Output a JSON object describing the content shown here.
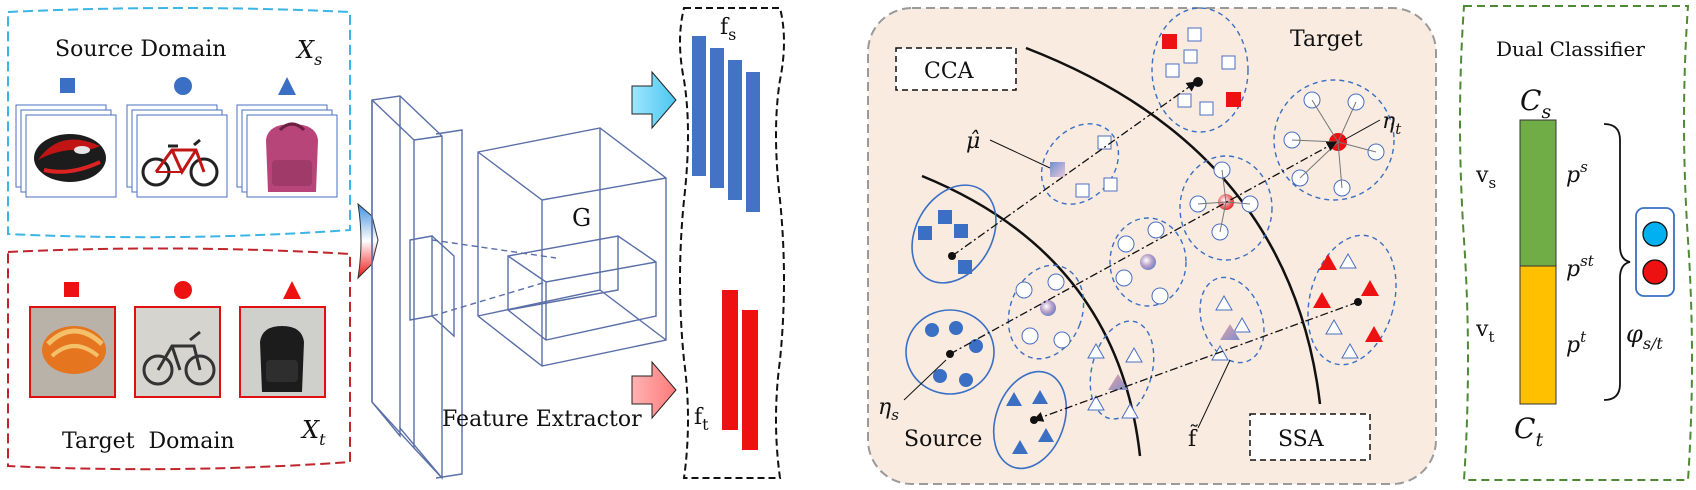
{
  "source_panel": {
    "title": "Source Domain",
    "symbol_base": "X",
    "symbol_sub": "s",
    "class_markers": [
      "square-icon",
      "circle-icon",
      "triangle-icon"
    ],
    "images": [
      "helmet-image",
      "bicycle-image",
      "backpack-image"
    ],
    "color": "#3a6fc4",
    "border_color": "#3bb4e6"
  },
  "target_panel": {
    "title": "Target  Domain",
    "symbol_base": "X",
    "symbol_sub": "t",
    "class_markers": [
      "square-icon",
      "circle-icon",
      "triangle-icon"
    ],
    "images": [
      "helmet-photo",
      "bicycle-photo",
      "backpack-photo"
    ],
    "color": "#ee1111",
    "border_color": "#c0242c"
  },
  "extractor": {
    "label": "Feature Extractor",
    "G": "G"
  },
  "features": {
    "fs_base": "f",
    "fs_sub": "s",
    "ft_base": "f",
    "ft_sub": "t",
    "fs_color": "#4472c4",
    "ft_color": "#ee1111"
  },
  "space_panel": {
    "cca": "CCA",
    "ssa": "SSA",
    "target": "Target",
    "source": "Source",
    "mu_hat": "μ̂",
    "f_tilde": "f̃",
    "eta_t_base": "η",
    "eta_t_sub": "t",
    "eta_s_base": "η",
    "eta_s_sub": "s",
    "fill": "#f9ebe0"
  },
  "classifier": {
    "title": "Dual Classifier",
    "cs_base": "C",
    "cs_sub": "s",
    "ct_base": "C",
    "ct_sub": "t",
    "vs_base": "v",
    "vs_sub": "s",
    "vt_base": "v",
    "vt_sub": "t",
    "ps_base": "p",
    "ps_sup": "s",
    "pst_base": "p",
    "pst_sup": "st",
    "pt_base": "p",
    "pt_sup": "t",
    "phi_base": "φ",
    "phi_sub": "s/t",
    "green": "#70ad47",
    "yellow": "#ffc000",
    "border": "#4e8a34"
  }
}
